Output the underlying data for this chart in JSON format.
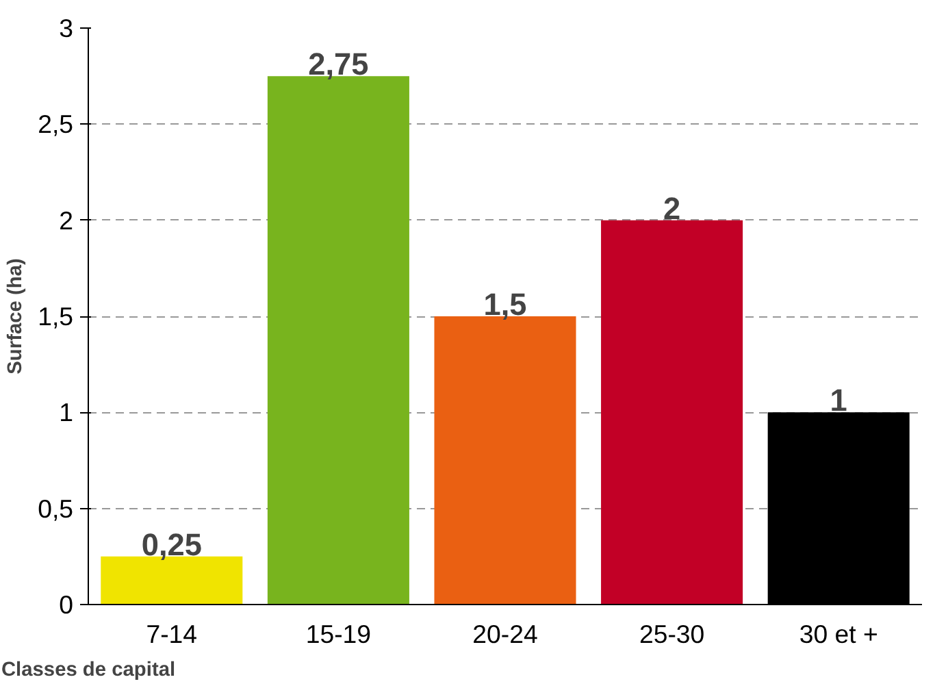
{
  "chart_data": {
    "type": "bar",
    "xlabel": "Classes de capital",
    "ylabel": "Surface (ha)",
    "categories": [
      "7-14",
      "15-19",
      "20-24",
      "25-30",
      "30 et +"
    ],
    "values": [
      0.25,
      2.75,
      1.5,
      2,
      1
    ],
    "colors": [
      "#f0e400",
      "#78b41e",
      "#ea6012",
      "#c20026",
      "#000000"
    ],
    "value_labels": [
      "0,25",
      "2,75",
      "1,5",
      "2",
      "1"
    ],
    "ylim": [
      0,
      3
    ],
    "yticks": [
      0,
      {
        "value": 0.5,
        "label": "0,5"
      },
      1,
      {
        "value": 1.5,
        "label": "1,5"
      },
      2,
      {
        "value": 2.5,
        "label": "2,5"
      },
      3
    ],
    "grid": "y",
    "line_style": "dashed"
  }
}
